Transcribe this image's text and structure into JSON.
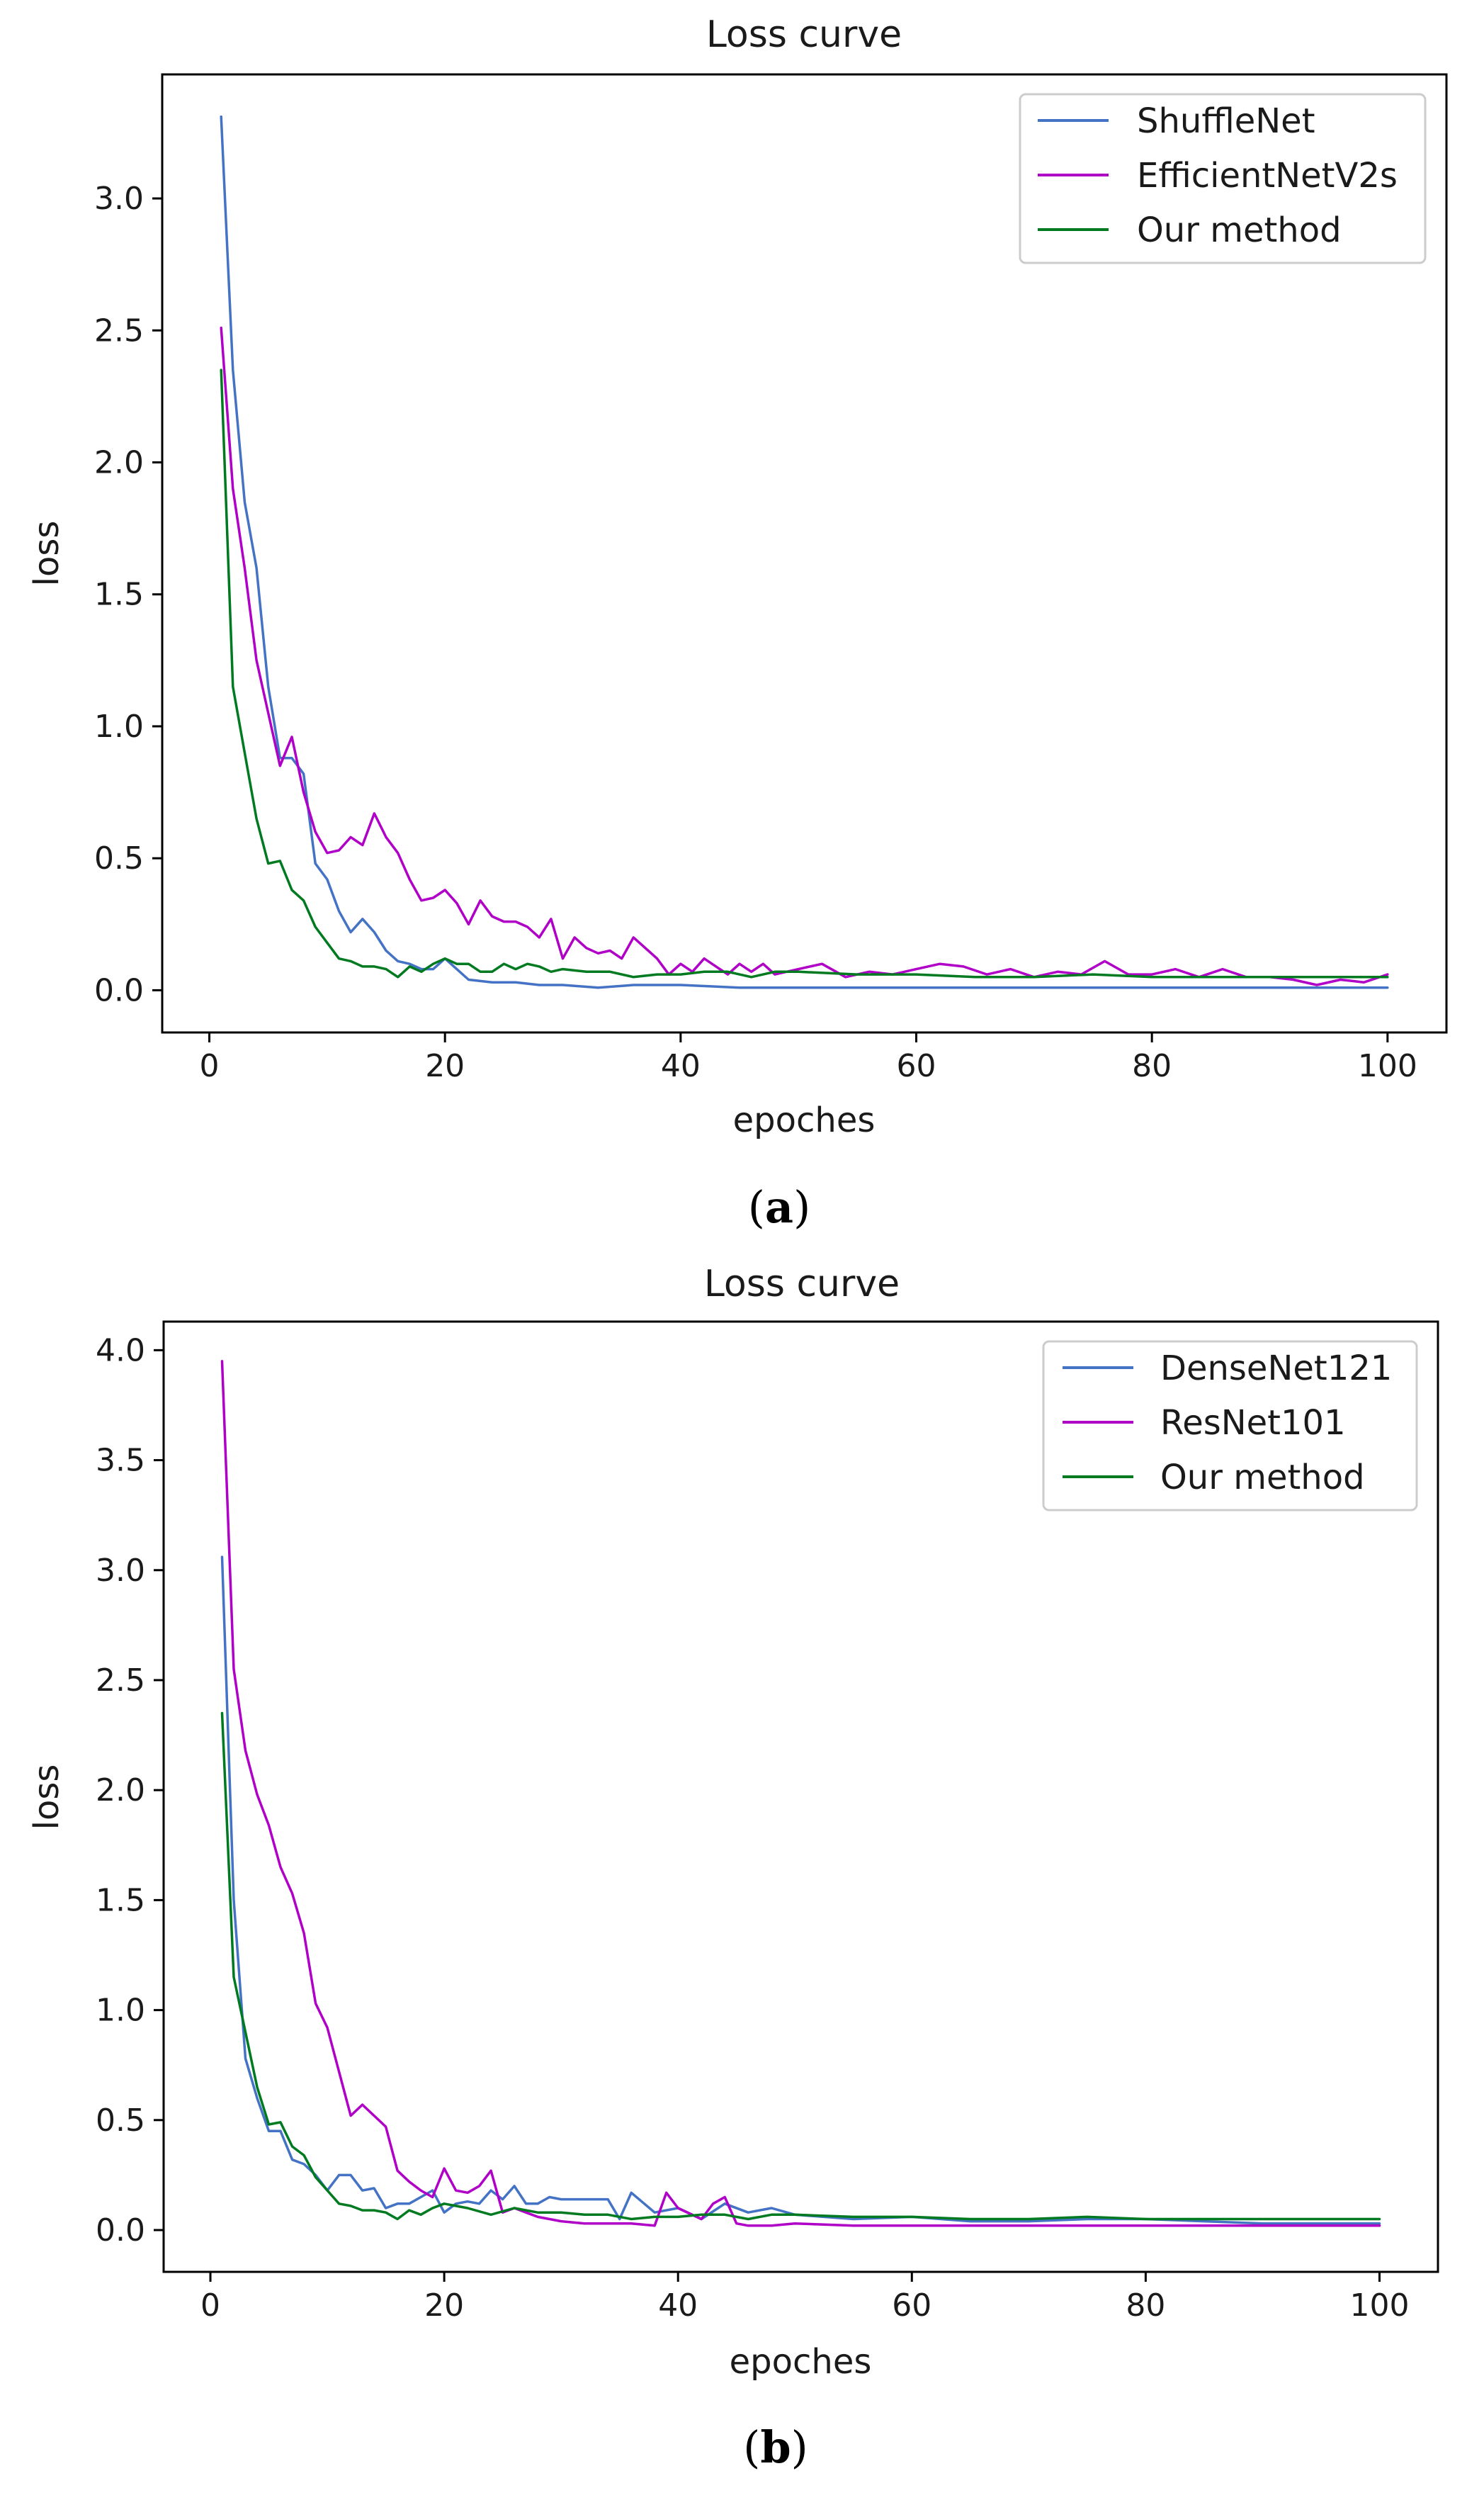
{
  "chart_data": [
    {
      "type": "line",
      "title": "Loss curve",
      "xlabel": "epoches",
      "ylabel": "loss",
      "xlim": [
        -4,
        105
      ],
      "ylim": [
        -0.16,
        3.47
      ],
      "xticks": [
        0,
        20,
        40,
        60,
        80,
        100
      ],
      "yticks": [
        0.0,
        0.5,
        1.0,
        1.5,
        2.0,
        2.5,
        3.0
      ],
      "ytick_labels": [
        "0.0",
        "0.5",
        "1.0",
        "1.5",
        "2.0",
        "2.5",
        "3.0"
      ],
      "legend_position": "top-right",
      "caption_letter": "a",
      "series": [
        {
          "name": "ShuffleNet",
          "color": "#4472c4",
          "x": [
            1,
            2,
            3,
            4,
            5,
            6,
            7,
            8,
            9,
            10,
            11,
            12,
            13,
            14,
            15,
            16,
            17,
            18,
            19,
            20,
            22,
            24,
            26,
            28,
            30,
            33,
            36,
            40,
            45,
            50,
            55,
            60,
            65,
            70,
            75,
            80,
            85,
            90,
            95,
            100
          ],
          "y": [
            3.31,
            2.35,
            1.85,
            1.6,
            1.15,
            0.88,
            0.88,
            0.82,
            0.48,
            0.42,
            0.3,
            0.22,
            0.27,
            0.22,
            0.15,
            0.11,
            0.1,
            0.08,
            0.08,
            0.12,
            0.04,
            0.03,
            0.03,
            0.02,
            0.02,
            0.01,
            0.02,
            0.02,
            0.01,
            0.01,
            0.01,
            0.01,
            0.01,
            0.01,
            0.01,
            0.01,
            0.01,
            0.01,
            0.01,
            0.01
          ]
        },
        {
          "name": "EfficientNetV2s",
          "color": "#b000c8",
          "x": [
            1,
            2,
            3,
            4,
            5,
            6,
            7,
            8,
            9,
            10,
            11,
            12,
            13,
            14,
            15,
            16,
            17,
            18,
            19,
            20,
            21,
            22,
            23,
            24,
            25,
            26,
            27,
            28,
            29,
            30,
            31,
            32,
            33,
            34,
            35,
            36,
            37,
            38,
            39,
            40,
            41,
            42,
            43,
            44,
            45,
            46,
            47,
            48,
            49,
            50,
            52,
            54,
            56,
            58,
            60,
            62,
            64,
            66,
            68,
            70,
            72,
            74,
            76,
            78,
            80,
            82,
            84,
            86,
            88,
            90,
            92,
            94,
            96,
            98,
            100
          ],
          "y": [
            2.51,
            1.9,
            1.6,
            1.25,
            1.05,
            0.85,
            0.96,
            0.75,
            0.6,
            0.52,
            0.53,
            0.58,
            0.55,
            0.67,
            0.58,
            0.52,
            0.42,
            0.34,
            0.35,
            0.38,
            0.33,
            0.25,
            0.34,
            0.28,
            0.26,
            0.26,
            0.24,
            0.2,
            0.27,
            0.12,
            0.2,
            0.16,
            0.14,
            0.15,
            0.12,
            0.2,
            0.16,
            0.12,
            0.06,
            0.1,
            0.07,
            0.12,
            0.09,
            0.06,
            0.1,
            0.07,
            0.1,
            0.06,
            0.07,
            0.08,
            0.1,
            0.05,
            0.07,
            0.06,
            0.08,
            0.1,
            0.09,
            0.06,
            0.08,
            0.05,
            0.07,
            0.06,
            0.11,
            0.06,
            0.06,
            0.08,
            0.05,
            0.08,
            0.05,
            0.05,
            0.04,
            0.02,
            0.04,
            0.03,
            0.06
          ]
        },
        {
          "name": "Our method",
          "color": "#007a20",
          "x": [
            1,
            2,
            3,
            4,
            5,
            6,
            7,
            8,
            9,
            10,
            11,
            12,
            13,
            14,
            15,
            16,
            17,
            18,
            19,
            20,
            21,
            22,
            23,
            24,
            25,
            26,
            27,
            28,
            29,
            30,
            32,
            34,
            36,
            38,
            40,
            42,
            44,
            46,
            48,
            50,
            55,
            60,
            65,
            70,
            75,
            80,
            85,
            90,
            95,
            100
          ],
          "y": [
            2.35,
            1.15,
            0.9,
            0.65,
            0.48,
            0.49,
            0.38,
            0.34,
            0.24,
            0.18,
            0.12,
            0.11,
            0.09,
            0.09,
            0.08,
            0.05,
            0.09,
            0.07,
            0.1,
            0.12,
            0.1,
            0.1,
            0.07,
            0.07,
            0.1,
            0.08,
            0.1,
            0.09,
            0.07,
            0.08,
            0.07,
            0.07,
            0.05,
            0.06,
            0.06,
            0.07,
            0.07,
            0.05,
            0.07,
            0.07,
            0.06,
            0.06,
            0.05,
            0.05,
            0.06,
            0.05,
            0.05,
            0.05,
            0.05,
            0.05
          ]
        }
      ]
    },
    {
      "type": "line",
      "title": "Loss curve",
      "xlabel": "epoches",
      "ylabel": "loss",
      "xlim": [
        -4,
        105
      ],
      "ylim": [
        -0.19,
        4.13
      ],
      "xticks": [
        0,
        20,
        40,
        60,
        80,
        100
      ],
      "yticks": [
        0.0,
        0.5,
        1.0,
        1.5,
        2.0,
        2.5,
        3.0,
        3.5,
        4.0
      ],
      "ytick_labels": [
        "0.0",
        "0.5",
        "1.0",
        "1.5",
        "2.0",
        "2.5",
        "3.0",
        "3.5",
        "4.0"
      ],
      "legend_position": "top-right",
      "caption_letter": "b",
      "series": [
        {
          "name": "DenseNet121",
          "color": "#4472c4",
          "x": [
            1,
            2,
            3,
            4,
            5,
            6,
            7,
            8,
            9,
            10,
            11,
            12,
            13,
            14,
            15,
            16,
            17,
            18,
            19,
            20,
            21,
            22,
            23,
            24,
            25,
            26,
            27,
            28,
            29,
            30,
            32,
            34,
            35,
            36,
            38,
            40,
            42,
            44,
            46,
            48,
            50,
            55,
            60,
            65,
            70,
            75,
            80,
            85,
            90,
            95,
            100
          ],
          "y": [
            3.06,
            1.5,
            0.78,
            0.6,
            0.45,
            0.45,
            0.32,
            0.3,
            0.25,
            0.18,
            0.25,
            0.25,
            0.18,
            0.19,
            0.1,
            0.12,
            0.12,
            0.15,
            0.18,
            0.08,
            0.12,
            0.13,
            0.12,
            0.18,
            0.14,
            0.2,
            0.12,
            0.12,
            0.15,
            0.14,
            0.14,
            0.14,
            0.05,
            0.17,
            0.08,
            0.1,
            0.05,
            0.12,
            0.08,
            0.1,
            0.07,
            0.05,
            0.06,
            0.04,
            0.04,
            0.05,
            0.05,
            0.04,
            0.03,
            0.03,
            0.03
          ]
        },
        {
          "name": "ResNet101",
          "color": "#b000c8",
          "x": [
            1,
            2,
            3,
            4,
            5,
            6,
            7,
            8,
            9,
            10,
            11,
            12,
            13,
            14,
            15,
            16,
            17,
            18,
            19,
            20,
            21,
            22,
            23,
            24,
            25,
            26,
            27,
            28,
            29,
            30,
            32,
            34,
            36,
            38,
            39,
            40,
            42,
            43,
            44,
            45,
            46,
            48,
            50,
            55,
            60,
            65,
            70,
            75,
            80,
            85,
            90,
            95,
            100
          ],
          "y": [
            3.95,
            2.55,
            2.18,
            1.98,
            1.84,
            1.65,
            1.53,
            1.35,
            1.03,
            0.92,
            0.72,
            0.52,
            0.57,
            0.52,
            0.47,
            0.27,
            0.22,
            0.18,
            0.15,
            0.28,
            0.18,
            0.17,
            0.2,
            0.27,
            0.08,
            0.1,
            0.08,
            0.06,
            0.05,
            0.04,
            0.03,
            0.03,
            0.03,
            0.02,
            0.17,
            0.1,
            0.05,
            0.12,
            0.15,
            0.03,
            0.02,
            0.02,
            0.03,
            0.02,
            0.02,
            0.02,
            0.02,
            0.02,
            0.02,
            0.02,
            0.02,
            0.02,
            0.02
          ]
        },
        {
          "name": "Our method",
          "color": "#007a20",
          "x": [
            1,
            2,
            3,
            4,
            5,
            6,
            7,
            8,
            9,
            10,
            11,
            12,
            13,
            14,
            15,
            16,
            17,
            18,
            19,
            20,
            22,
            24,
            26,
            28,
            30,
            32,
            34,
            36,
            38,
            40,
            42,
            44,
            46,
            48,
            50,
            55,
            60,
            65,
            70,
            75,
            80,
            85,
            90,
            95,
            100
          ],
          "y": [
            2.35,
            1.15,
            0.9,
            0.65,
            0.48,
            0.49,
            0.38,
            0.34,
            0.24,
            0.18,
            0.12,
            0.11,
            0.09,
            0.09,
            0.08,
            0.05,
            0.09,
            0.07,
            0.1,
            0.12,
            0.1,
            0.07,
            0.1,
            0.08,
            0.08,
            0.07,
            0.07,
            0.05,
            0.06,
            0.06,
            0.07,
            0.07,
            0.05,
            0.07,
            0.07,
            0.06,
            0.06,
            0.05,
            0.05,
            0.06,
            0.05,
            0.05,
            0.05,
            0.05,
            0.05
          ]
        }
      ]
    }
  ]
}
